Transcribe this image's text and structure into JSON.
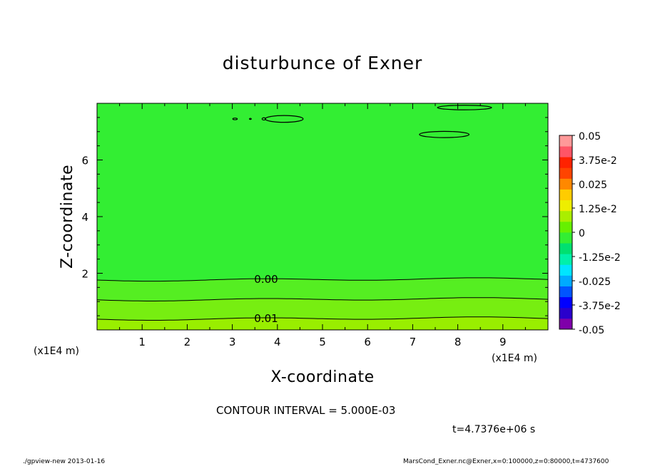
{
  "chart_data": {
    "type": "heatmap",
    "title": "disturbunce of Exner",
    "xlabel": "X-coordinate",
    "ylabel": "Z-coordinate",
    "x_unit": "(x1E4 m)",
    "y_unit": "(x1E4 m)",
    "xlim": [
      0,
      10
    ],
    "ylim": [
      0,
      8
    ],
    "x_ticks": [
      1,
      2,
      3,
      4,
      5,
      6,
      7,
      8,
      9
    ],
    "y_ticks": [
      2,
      4,
      6
    ],
    "colorbar": {
      "labels": [
        "0.05",
        "3.75e-2",
        "0.025",
        "1.25e-2",
        "0",
        "-1.25e-2",
        "-0.025",
        "-3.75e-2",
        "-0.05"
      ],
      "min": -0.05,
      "max": 0.05,
      "colors": [
        "#7f00aa",
        "#2a00cc",
        "#0000ff",
        "#0055ff",
        "#00aaff",
        "#00e5ff",
        "#00f0aa",
        "#00e070",
        "#33ee33",
        "#66f000",
        "#aaee00",
        "#eeee00",
        "#ffcc00",
        "#ff8800",
        "#ff4400",
        "#ff2200",
        "#ff5566",
        "#ff9999"
      ]
    },
    "bands": [
      {
        "z_top": 8.0,
        "z_bottom": 1.78,
        "value_range": [
          -0.005,
          0.0
        ],
        "color": "#33ee33"
      },
      {
        "z_top": 1.78,
        "z_bottom": 1.08,
        "value_range": [
          0.0,
          0.005
        ],
        "color": "#55ee22"
      },
      {
        "z_top": 1.08,
        "z_bottom": 0.4,
        "value_range": [
          0.005,
          0.01
        ],
        "color": "#77ee11"
      },
      {
        "z_top": 0.4,
        "z_bottom": 0.0,
        "value_range": [
          0.01,
          0.015
        ],
        "color": "#99ee00"
      }
    ],
    "contour_lines": [
      {
        "z": 1.78,
        "label": "0.00"
      },
      {
        "z": 1.08,
        "label": ""
      },
      {
        "z": 0.4,
        "label": "0.01"
      }
    ],
    "contour_interval": "CONTOUR INTERVAL = 5.000E-03",
    "time": "t=4.7376e+06 s"
  },
  "footer": {
    "left": "./gpview-new   2013-01-16",
    "right": "MarsCond_Exner.nc@Exner,x=0:100000,z=0:80000,t=4737600"
  }
}
